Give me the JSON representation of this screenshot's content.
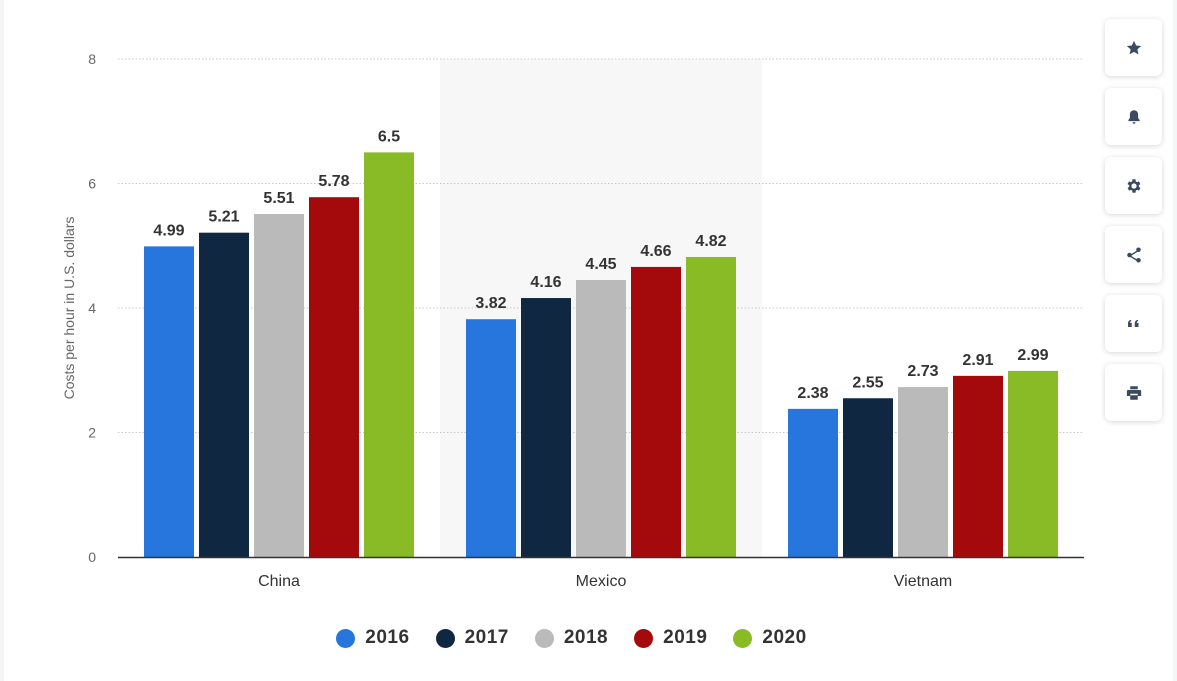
{
  "chart_data": {
    "type": "bar",
    "categories": [
      "China",
      "Mexico",
      "Vietnam"
    ],
    "series": [
      {
        "name": "2016",
        "color": "#2776dd",
        "values": [
          4.99,
          3.82,
          2.38
        ]
      },
      {
        "name": "2017",
        "color": "#0f2740",
        "values": [
          5.21,
          4.16,
          2.55
        ]
      },
      {
        "name": "2018",
        "color": "#bababa",
        "values": [
          5.51,
          4.45,
          2.73
        ]
      },
      {
        "name": "2019",
        "color": "#a40a0c",
        "values": [
          5.78,
          4.66,
          2.91
        ]
      },
      {
        "name": "2020",
        "color": "#89bb27",
        "values": [
          6.5,
          4.82,
          2.99
        ]
      }
    ],
    "value_labels": [
      [
        "4.99",
        "3.82",
        "2.38"
      ],
      [
        "5.21",
        "4.16",
        "2.55"
      ],
      [
        "5.51",
        "4.45",
        "2.73"
      ],
      [
        "5.78",
        "4.66",
        "2.91"
      ],
      [
        "6.5",
        "4.82",
        "2.99"
      ]
    ],
    "title": "",
    "xlabel": "",
    "ylabel": "Costs per hour in U.S. dollars",
    "ylim": [
      0,
      8
    ],
    "yticks": [
      "0",
      "2",
      "4",
      "6",
      "8"
    ],
    "grid": true,
    "highlighted_category": "Mexico",
    "legend_position": "bottom"
  },
  "toolbar": {
    "buttons": [
      {
        "name": "favorite-button",
        "icon": "star-icon"
      },
      {
        "name": "notification-button",
        "icon": "bell-icon"
      },
      {
        "name": "settings-button",
        "icon": "gear-icon"
      },
      {
        "name": "share-button",
        "icon": "share-icon"
      },
      {
        "name": "cite-button",
        "icon": "quote-icon"
      },
      {
        "name": "print-button",
        "icon": "print-icon"
      }
    ]
  }
}
